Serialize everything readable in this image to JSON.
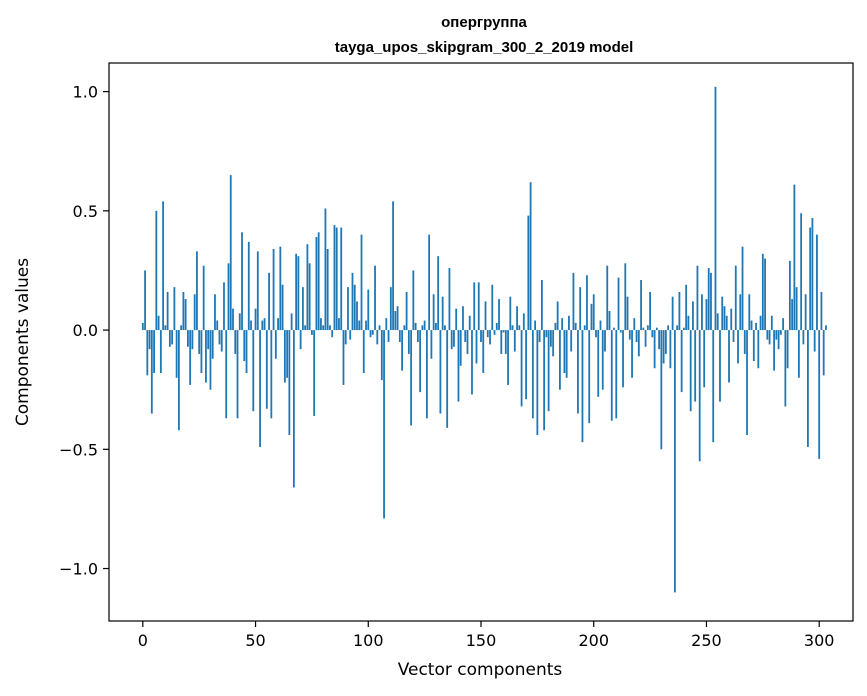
{
  "chart_data": {
    "type": "bar",
    "title": "опергруппа",
    "subtitle": "tayga_upos_skipgram_300_2_2019 model",
    "xlabel": "Vector components",
    "ylabel": "Components values",
    "xlim": [
      -15,
      315
    ],
    "ylim": [
      -1.22,
      1.12
    ],
    "xticks": [
      0,
      50,
      100,
      150,
      200,
      250,
      300
    ],
    "xtick_labels": [
      "0",
      "50",
      "100",
      "150",
      "200",
      "250",
      "300"
    ],
    "yticks": [
      -1.0,
      -0.5,
      0.0,
      0.5,
      1.0
    ],
    "ytick_labels": [
      "−1.0",
      "−0.5",
      "0.0",
      "0.5",
      "1.0"
    ],
    "grid": false,
    "bar_color": "#1f77b4",
    "series": [
      {
        "values": [
          0.03,
          0.25,
          -0.19,
          -0.08,
          -0.35,
          -0.18,
          0.5,
          0.06,
          -0.18,
          0.54,
          0.02,
          0.16,
          -0.07,
          -0.06,
          0.18,
          -0.2,
          -0.42,
          0.02,
          0.16,
          0.13,
          -0.07,
          -0.23,
          -0.08,
          0.15,
          0.33,
          -0.1,
          -0.18,
          0.27,
          -0.22,
          -0.08,
          -0.25,
          -0.12,
          0.15,
          0.04,
          -0.06,
          -0.09,
          0.2,
          -0.37,
          0.28,
          0.65,
          0.09,
          -0.1,
          -0.37,
          0.07,
          0.41,
          -0.13,
          -0.18,
          0.37,
          0.04,
          -0.34,
          0.09,
          0.33,
          -0.49,
          0.04,
          0.05,
          -0.33,
          0.24,
          -0.37,
          0.34,
          -0.12,
          0.05,
          0.35,
          0.19,
          -0.22,
          -0.2,
          -0.44,
          0.07,
          -0.66,
          0.32,
          0.31,
          -0.08,
          0.18,
          0.02,
          0.36,
          0.28,
          -0.02,
          -0.36,
          0.39,
          0.41,
          0.05,
          0.02,
          0.51,
          0.34,
          0.02,
          -0.03,
          0.44,
          0.43,
          0.05,
          0.43,
          -0.23,
          -0.06,
          0.18,
          -0.04,
          0.24,
          0.19,
          0.12,
          0.04,
          0.4,
          -0.18,
          0.04,
          0.17,
          -0.03,
          -0.02,
          0.27,
          -0.06,
          0.02,
          -0.21,
          -0.79,
          0.05,
          -0.05,
          0.18,
          0.54,
          0.08,
          0.1,
          -0.05,
          -0.17,
          0.02,
          0.16,
          -0.1,
          -0.4,
          0.25,
          0.03,
          -0.05,
          -0.26,
          0.02,
          0.04,
          -0.37,
          0.4,
          -0.12,
          0.15,
          0.03,
          0.31,
          -0.35,
          0.14,
          0.02,
          -0.41,
          0.26,
          -0.08,
          -0.07,
          0.09,
          -0.3,
          -0.15,
          0.1,
          -0.05,
          -0.1,
          0.06,
          -0.27,
          0.2,
          -0.14,
          0.2,
          -0.05,
          -0.18,
          0.12,
          -0.03,
          -0.06,
          0.19,
          -0.02,
          0.03,
          0.13,
          -0.1,
          -0.01,
          -0.1,
          -0.23,
          0.14,
          0.02,
          -0.09,
          0.1,
          0.02,
          -0.32,
          0.07,
          -0.29,
          0.48,
          0.62,
          -0.37,
          0.04,
          -0.44,
          -0.05,
          0.21,
          -0.42,
          -0.03,
          -0.34,
          -0.07,
          -0.11,
          0.03,
          0.12,
          -0.25,
          0.05,
          -0.18,
          -0.2,
          0.06,
          -0.09,
          0.24,
          0.03,
          -0.35,
          0.18,
          -0.47,
          0.02,
          0.23,
          -0.39,
          0.11,
          0.15,
          -0.03,
          -0.28,
          0.04,
          -0.25,
          -0.09,
          0.27,
          0.08,
          -0.38,
          0.01,
          -0.37,
          0.22,
          -0.01,
          -0.24,
          0.28,
          0.14,
          -0.04,
          -0.2,
          0.05,
          -0.05,
          -0.11,
          0.21,
          0.01,
          -0.07,
          0.02,
          0.16,
          -0.03,
          -0.16,
          0.01,
          -0.08,
          -0.5,
          -0.14,
          -0.1,
          0.02,
          -0.16,
          0.14,
          -1.1,
          0.02,
          0.16,
          -0.26,
          0.01,
          0.19,
          0.06,
          -0.34,
          0.12,
          -0.3,
          0.27,
          -0.55,
          0.15,
          -0.24,
          0.13,
          0.26,
          0.24,
          -0.47,
          1.02,
          0.07,
          -0.3,
          0.14,
          0.1,
          0.06,
          -0.22,
          0.09,
          -0.05,
          0.27,
          -0.14,
          0.15,
          0.35,
          -0.1,
          -0.44,
          0.15,
          0.04,
          -0.13,
          0.03,
          -0.16,
          0.06,
          0.32,
          0.3,
          -0.04,
          -0.06,
          0.06,
          -0.17,
          -0.04,
          -0.08,
          -0.02,
          0.05,
          -0.32,
          -0.16,
          0.29,
          0.13,
          0.61,
          0.18,
          -0.2,
          0.49,
          -0.06,
          0.15,
          -0.49,
          0.43,
          0.47,
          -0.09,
          0.4,
          -0.54,
          0.16,
          -0.19,
          0.02
        ]
      }
    ]
  }
}
